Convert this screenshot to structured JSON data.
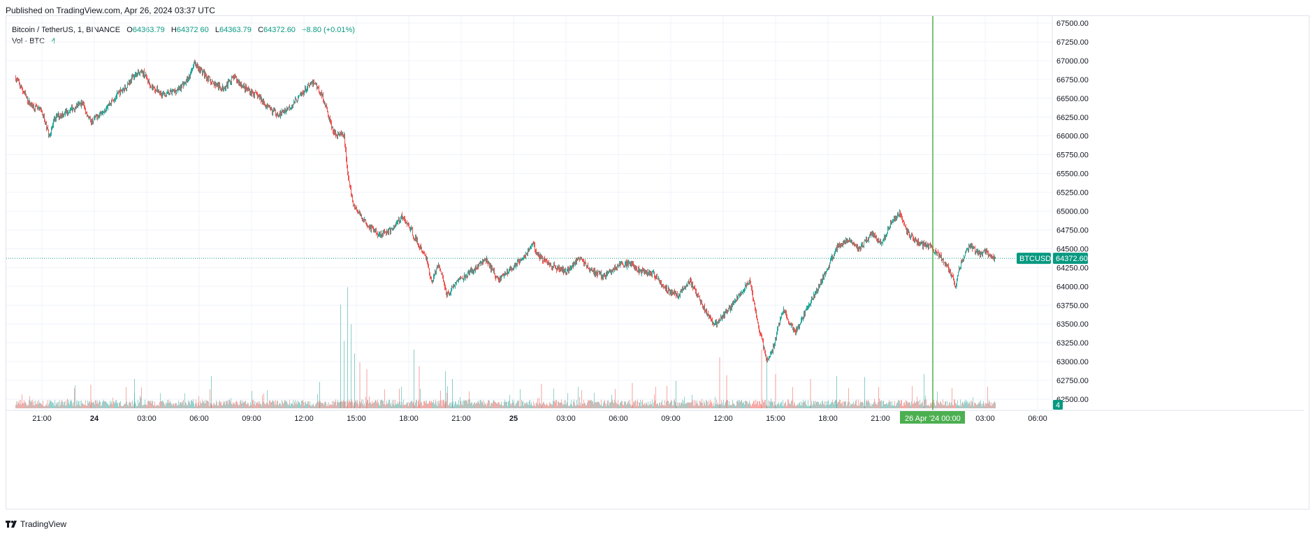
{
  "header": {
    "published": "Published on TradingView.com, Apr 26, 2024 03:37 UTC"
  },
  "legend": {
    "symbol": "Bitcoin / TetherUS, 1, BINANCE",
    "o_label": "O",
    "o_value": "64363.79",
    "h_label": "H",
    "h_value": "64372.60",
    "l_label": "L",
    "l_value": "64363.79",
    "c_label": "C",
    "c_value": "64372.60",
    "change": "+8.80 (+0.01%)",
    "vol_label": "Vol · BTC",
    "vol_value": "4"
  },
  "price_tag": {
    "symbol": "BTCUSDT",
    "value": "64372.60",
    "volume": "4"
  },
  "cursor_time_label": "26 Apr '24   00:00",
  "footer": {
    "brand": "TradingView"
  },
  "colors": {
    "up": "#26a69a",
    "down": "#ef5350",
    "accent": "#089981",
    "cursor": "#4caf50"
  },
  "chart_data": {
    "type": "candlestick",
    "symbol": "BTCUSDT",
    "interval": "1",
    "ylim": [
      62400,
      67600
    ],
    "y_ticks": [
      "67500.00",
      "67250.00",
      "67000.00",
      "66750.00",
      "66500.00",
      "66250.00",
      "66000.00",
      "65750.00",
      "65500.00",
      "65250.00",
      "65000.00",
      "64750.00",
      "64500.00",
      "64250.00",
      "64000.00",
      "63750.00",
      "63500.00",
      "63250.00",
      "63000.00",
      "62750.00",
      "62500.00"
    ],
    "x_ticks": [
      {
        "label": "21:00",
        "h": 21,
        "bold": false
      },
      {
        "label": "24",
        "h": 24,
        "bold": true
      },
      {
        "label": "03:00",
        "h": 27,
        "bold": false
      },
      {
        "label": "06:00",
        "h": 30,
        "bold": false
      },
      {
        "label": "09:00",
        "h": 33,
        "bold": false
      },
      {
        "label": "12:00",
        "h": 36,
        "bold": false
      },
      {
        "label": "15:00",
        "h": 39,
        "bold": false
      },
      {
        "label": "18:00",
        "h": 42,
        "bold": false
      },
      {
        "label": "21:00",
        "h": 45,
        "bold": false
      },
      {
        "label": "25",
        "h": 48,
        "bold": true
      },
      {
        "label": "03:00",
        "h": 51,
        "bold": false
      },
      {
        "label": "06:00",
        "h": 54,
        "bold": false
      },
      {
        "label": "09:00",
        "h": 57,
        "bold": false
      },
      {
        "label": "12:00",
        "h": 60,
        "bold": false
      },
      {
        "label": "15:00",
        "h": 63,
        "bold": false
      },
      {
        "label": "18:00",
        "h": 66,
        "bold": false
      },
      {
        "label": "21:00",
        "h": 69,
        "bold": false
      },
      {
        "label": "03:00",
        "h": 75,
        "bold": false
      },
      {
        "label": "06:00",
        "h": 78,
        "bold": false
      }
    ],
    "x_range_hours": [
      19.45,
      80.0
    ],
    "last_price": 64372.6,
    "cursor_hour": 72.0,
    "price_path": [
      [
        19.5,
        66770
      ],
      [
        20.3,
        66430
      ],
      [
        21.0,
        66320
      ],
      [
        21.4,
        66010
      ],
      [
        21.8,
        66250
      ],
      [
        22.5,
        66330
      ],
      [
        23.3,
        66440
      ],
      [
        23.8,
        66180
      ],
      [
        24.5,
        66340
      ],
      [
        25.3,
        66540
      ],
      [
        25.8,
        66650
      ],
      [
        26.3,
        66810
      ],
      [
        26.8,
        66840
      ],
      [
        27.3,
        66650
      ],
      [
        28.0,
        66540
      ],
      [
        28.8,
        66620
      ],
      [
        29.4,
        66760
      ],
      [
        29.7,
        66980
      ],
      [
        30.0,
        66900
      ],
      [
        30.6,
        66740
      ],
      [
        31.3,
        66620
      ],
      [
        32.0,
        66780
      ],
      [
        32.6,
        66640
      ],
      [
        33.4,
        66520
      ],
      [
        34.0,
        66360
      ],
      [
        34.6,
        66280
      ],
      [
        35.4,
        66430
      ],
      [
        36.1,
        66620
      ],
      [
        36.6,
        66720
      ],
      [
        37.1,
        66500
      ],
      [
        37.7,
        66040
      ],
      [
        38.3,
        66000
      ],
      [
        38.5,
        65500
      ],
      [
        38.8,
        65100
      ],
      [
        39.2,
        64950
      ],
      [
        39.7,
        64800
      ],
      [
        40.3,
        64690
      ],
      [
        41.0,
        64750
      ],
      [
        41.6,
        64930
      ],
      [
        42.1,
        64760
      ],
      [
        42.6,
        64530
      ],
      [
        43.0,
        64380
      ],
      [
        43.3,
        64050
      ],
      [
        43.7,
        64300
      ],
      [
        44.2,
        63890
      ],
      [
        44.8,
        64080
      ],
      [
        45.6,
        64200
      ],
      [
        46.4,
        64360
      ],
      [
        47.1,
        64090
      ],
      [
        47.8,
        64220
      ],
      [
        48.7,
        64430
      ],
      [
        49.1,
        64560
      ],
      [
        49.5,
        64390
      ],
      [
        50.2,
        64270
      ],
      [
        51.0,
        64200
      ],
      [
        51.8,
        64380
      ],
      [
        52.4,
        64210
      ],
      [
        53.2,
        64130
      ],
      [
        54.0,
        64280
      ],
      [
        54.8,
        64300
      ],
      [
        55.3,
        64190
      ],
      [
        56.0,
        64170
      ],
      [
        56.7,
        63970
      ],
      [
        57.4,
        63880
      ],
      [
        58.1,
        64070
      ],
      [
        58.8,
        63760
      ],
      [
        59.5,
        63480
      ],
      [
        60.2,
        63660
      ],
      [
        60.9,
        63870
      ],
      [
        61.5,
        64080
      ],
      [
        62.0,
        63500
      ],
      [
        62.5,
        63000
      ],
      [
        62.9,
        63200
      ],
      [
        63.4,
        63700
      ],
      [
        64.1,
        63380
      ],
      [
        64.8,
        63700
      ],
      [
        65.5,
        64020
      ],
      [
        66.0,
        64250
      ],
      [
        66.5,
        64520
      ],
      [
        67.2,
        64640
      ],
      [
        67.8,
        64500
      ],
      [
        68.5,
        64700
      ],
      [
        69.1,
        64560
      ],
      [
        69.6,
        64850
      ],
      [
        70.1,
        64960
      ],
      [
        70.6,
        64700
      ],
      [
        71.3,
        64560
      ],
      [
        71.9,
        64520
      ],
      [
        72.4,
        64400
      ],
      [
        72.9,
        64250
      ],
      [
        73.3,
        64000
      ],
      [
        73.6,
        64300
      ],
      [
        74.1,
        64540
      ],
      [
        74.6,
        64440
      ],
      [
        75.1,
        64450
      ],
      [
        75.4,
        64380
      ],
      [
        75.6,
        64372.6
      ]
    ],
    "volume_spikes": [
      [
        38.1,
        1060
      ],
      [
        38.3,
        690
      ],
      [
        38.5,
        1240
      ],
      [
        38.7,
        860
      ],
      [
        38.9,
        560
      ],
      [
        39.2,
        470
      ],
      [
        39.6,
        400
      ],
      [
        42.3,
        600
      ],
      [
        42.6,
        430
      ],
      [
        44.1,
        380
      ],
      [
        44.5,
        300
      ],
      [
        59.8,
        520
      ],
      [
        60.2,
        340
      ],
      [
        62.2,
        600
      ],
      [
        62.5,
        480
      ],
      [
        63.0,
        350
      ],
      [
        66.5,
        330
      ],
      [
        26.3,
        300
      ],
      [
        30.7,
        330
      ],
      [
        23.8,
        240
      ],
      [
        49.6,
        250
      ],
      [
        71.5,
        350
      ],
      [
        68.1,
        320
      ],
      [
        57.3,
        280
      ],
      [
        54.8,
        260
      ],
      [
        65.0,
        300
      ],
      [
        36.9,
        270
      ]
    ]
  }
}
